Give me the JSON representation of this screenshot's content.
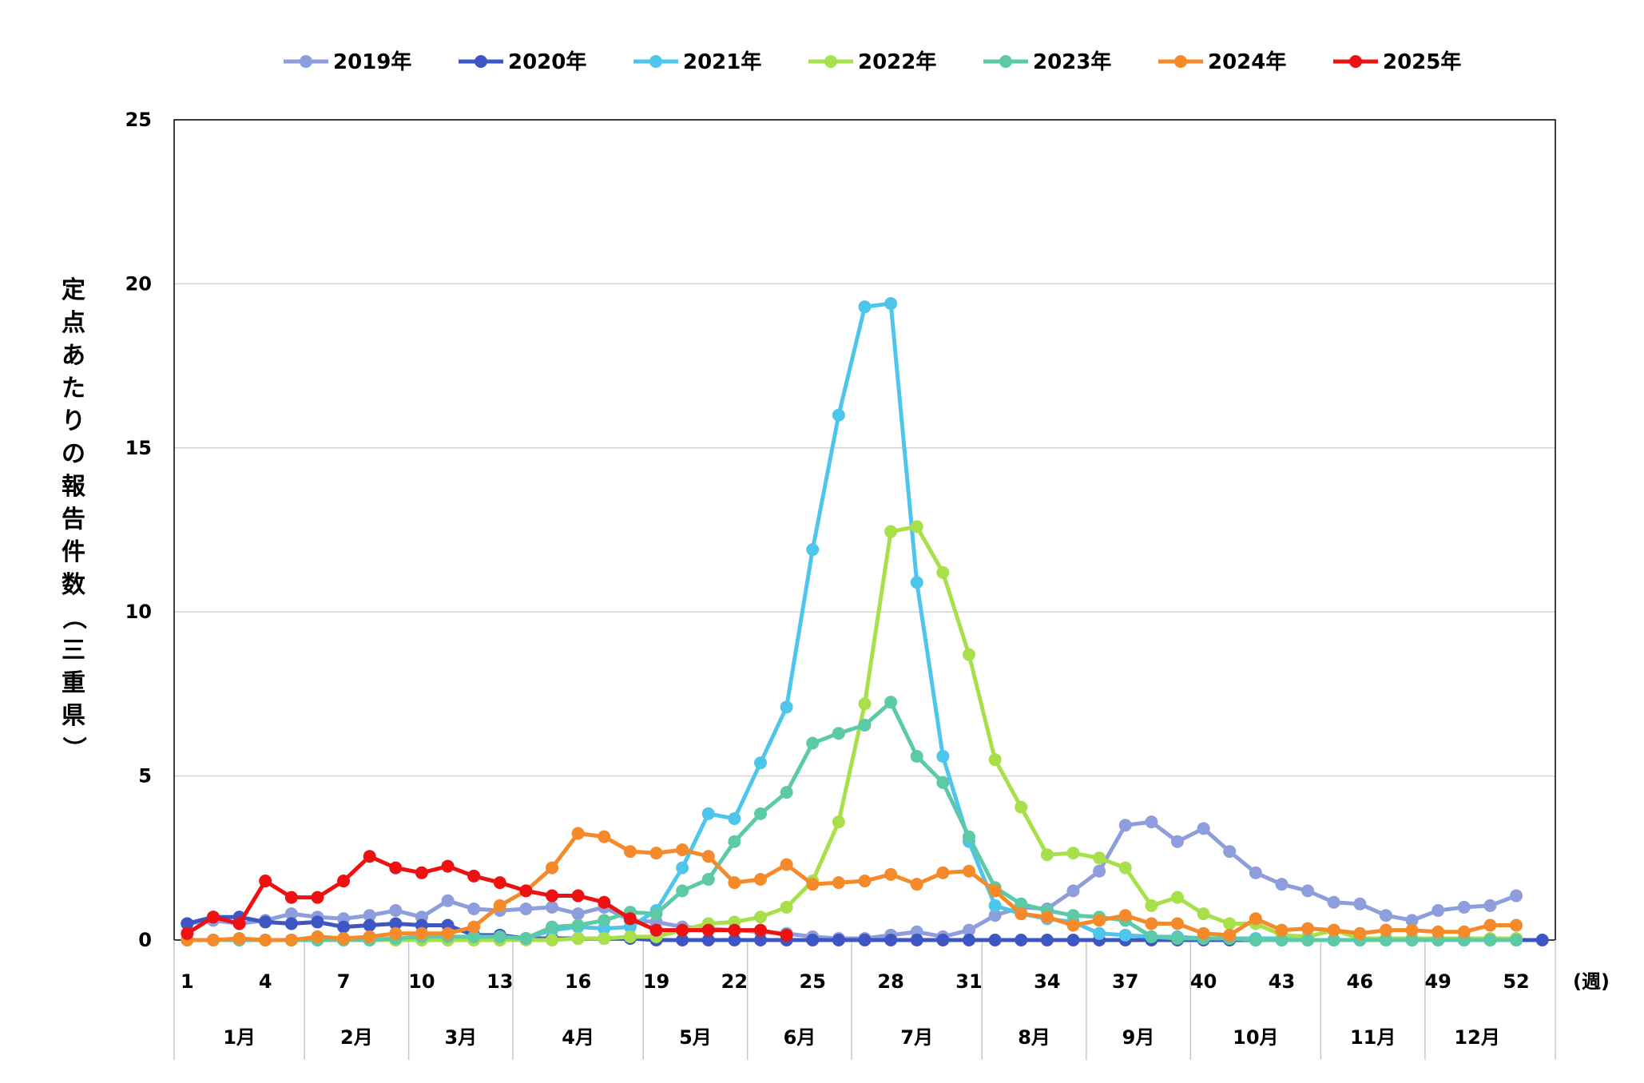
{
  "chart_data": {
    "type": "line",
    "ylabel": "定点あたりの報告件数（三重県）",
    "x_unit_label": "(週)",
    "ylim": [
      0,
      25
    ],
    "y_ticks": [
      "0",
      "5",
      "10",
      "15",
      "20",
      "25"
    ],
    "x": [
      1,
      2,
      3,
      4,
      5,
      6,
      7,
      8,
      9,
      10,
      11,
      12,
      13,
      14,
      15,
      16,
      17,
      18,
      19,
      20,
      21,
      22,
      23,
      24,
      25,
      26,
      27,
      28,
      29,
      30,
      31,
      32,
      33,
      34,
      35,
      36,
      37,
      38,
      39,
      40,
      41,
      42,
      43,
      44,
      45,
      46,
      47,
      48,
      49,
      50,
      51,
      52,
      53
    ],
    "x_tick_labels": [
      "1",
      "4",
      "7",
      "10",
      "13",
      "16",
      "19",
      "22",
      "25",
      "28",
      "31",
      "34",
      "37",
      "40",
      "43",
      "46",
      "49",
      "52"
    ],
    "months": [
      {
        "label": "1月",
        "start": 1,
        "end": 5
      },
      {
        "label": "2月",
        "start": 6,
        "end": 9
      },
      {
        "label": "3月",
        "start": 10,
        "end": 13
      },
      {
        "label": "4月",
        "start": 14,
        "end": 18
      },
      {
        "label": "5月",
        "start": 19,
        "end": 22
      },
      {
        "label": "6月",
        "start": 23,
        "end": 26
      },
      {
        "label": "7月",
        "start": 27,
        "end": 31
      },
      {
        "label": "8月",
        "start": 32,
        "end": 35
      },
      {
        "label": "9月",
        "start": 36,
        "end": 39
      },
      {
        "label": "10月",
        "start": 40,
        "end": 44
      },
      {
        "label": "11月",
        "start": 45,
        "end": 48
      },
      {
        "label": "12月",
        "start": 49,
        "end": 52
      }
    ],
    "grid": true,
    "legend_position": "top",
    "series": [
      {
        "name": "2019年",
        "color": "#8e9ddb",
        "values": [
          0.5,
          0.6,
          0.5,
          0.6,
          0.8,
          0.7,
          0.65,
          0.75,
          0.9,
          0.7,
          1.2,
          0.95,
          0.9,
          0.95,
          1.0,
          0.8,
          1.0,
          0.6,
          0.55,
          0.4,
          0.35,
          0.3,
          0.25,
          0.2,
          0.1,
          0.05,
          0.05,
          0.15,
          0.25,
          0.1,
          0.3,
          0.75,
          1.0,
          0.95,
          1.5,
          2.1,
          3.5,
          3.6,
          3.0,
          3.4,
          2.7,
          2.05,
          1.7,
          1.5,
          1.15,
          1.1,
          0.75,
          0.6,
          0.9,
          1.0,
          1.05,
          1.35,
          null
        ]
      },
      {
        "name": "2020年",
        "color": "#3e56c4",
        "values": [
          0.5,
          0.7,
          0.7,
          0.55,
          0.5,
          0.55,
          0.4,
          0.45,
          0.5,
          0.45,
          0.45,
          0.15,
          0.15,
          0.05,
          0.05,
          0.05,
          0.05,
          0.05,
          0.0,
          0.0,
          0.0,
          0.0,
          0.0,
          0.0,
          0.0,
          0.0,
          0.0,
          0.0,
          0.0,
          0.0,
          0.0,
          0.0,
          0.0,
          0.0,
          0.0,
          0.0,
          0.0,
          0.0,
          0.0,
          0.0,
          0.0,
          0.0,
          0.0,
          0.0,
          0.0,
          0.0,
          0.0,
          0.0,
          0.0,
          0.0,
          0.0,
          0.0,
          0.0
        ]
      },
      {
        "name": "2021年",
        "color": "#4ec6ec",
        "values": [
          0.0,
          0.0,
          0.0,
          0.0,
          0.0,
          0.0,
          0.0,
          0.0,
          0.0,
          0.0,
          0.0,
          0.0,
          0.0,
          0.05,
          0.3,
          0.4,
          0.35,
          0.4,
          0.9,
          2.2,
          3.85,
          3.7,
          5.4,
          7.1,
          11.9,
          16.0,
          19.3,
          19.4,
          10.9,
          5.6,
          3.0,
          1.05,
          0.8,
          0.65,
          0.55,
          0.2,
          0.15,
          0.1,
          0.1,
          0.05,
          0.05,
          0.05,
          0.05,
          0.0,
          0.0,
          0.0,
          0.0,
          0.0,
          0.0,
          0.0,
          0.0,
          0.0,
          null
        ]
      },
      {
        "name": "2022年",
        "color": "#a7e04b",
        "values": [
          0.0,
          0.0,
          0.0,
          0.0,
          0.0,
          0.0,
          0.0,
          0.0,
          0.0,
          0.0,
          0.0,
          0.0,
          0.0,
          0.0,
          0.0,
          0.05,
          0.05,
          0.1,
          0.1,
          0.3,
          0.5,
          0.55,
          0.7,
          1.0,
          1.8,
          3.6,
          7.2,
          12.45,
          12.6,
          11.2,
          8.7,
          5.5,
          4.05,
          2.6,
          2.65,
          2.5,
          2.2,
          1.05,
          1.3,
          0.8,
          0.5,
          0.5,
          0.15,
          0.1,
          0.3,
          0.05,
          0.05,
          0.05,
          0.05,
          0.05,
          0.05,
          0.05,
          null
        ]
      },
      {
        "name": "2023年",
        "color": "#5cc9a7",
        "values": [
          0.0,
          0.0,
          0.0,
          0.0,
          0.0,
          0.0,
          0.0,
          0.0,
          0.05,
          0.1,
          0.1,
          0.1,
          0.1,
          0.05,
          0.4,
          0.45,
          0.6,
          0.85,
          0.8,
          1.5,
          1.85,
          3.0,
          3.85,
          4.5,
          6.0,
          6.3,
          6.55,
          7.25,
          5.6,
          4.8,
          3.15,
          1.6,
          1.1,
          0.9,
          0.75,
          0.7,
          0.6,
          0.1,
          0.05,
          0.05,
          0.05,
          0.0,
          0.0,
          0.0,
          0.0,
          0.0,
          0.0,
          0.0,
          0.0,
          0.0,
          0.0,
          0.0,
          null
        ]
      },
      {
        "name": "2024年",
        "color": "#f58a2a",
        "values": [
          0.0,
          0.0,
          0.05,
          0.0,
          0.0,
          0.1,
          0.05,
          0.1,
          0.2,
          0.2,
          0.2,
          0.4,
          1.05,
          1.5,
          2.2,
          3.25,
          3.15,
          2.7,
          2.65,
          2.75,
          2.55,
          1.75,
          1.85,
          2.3,
          1.7,
          1.75,
          1.8,
          2.0,
          1.7,
          2.05,
          2.1,
          1.5,
          0.8,
          0.7,
          0.45,
          0.6,
          0.75,
          0.5,
          0.5,
          0.2,
          0.15,
          0.65,
          0.3,
          0.35,
          0.3,
          0.2,
          0.3,
          0.3,
          0.25,
          0.25,
          0.45,
          0.45,
          null
        ]
      },
      {
        "name": "2025年",
        "color": "#ee1111",
        "values": [
          0.2,
          0.7,
          0.5,
          1.8,
          1.3,
          1.3,
          1.8,
          2.55,
          2.2,
          2.05,
          2.25,
          1.95,
          1.75,
          1.5,
          1.35,
          1.35,
          1.15,
          0.65,
          0.3,
          0.3,
          0.3,
          0.3,
          0.3,
          0.15,
          null,
          null,
          null,
          null,
          null,
          null,
          null,
          null,
          null,
          null,
          null,
          null,
          null,
          null,
          null,
          null,
          null,
          null,
          null,
          null,
          null,
          null,
          null,
          null,
          null,
          null,
          null,
          null,
          null
        ]
      }
    ]
  }
}
